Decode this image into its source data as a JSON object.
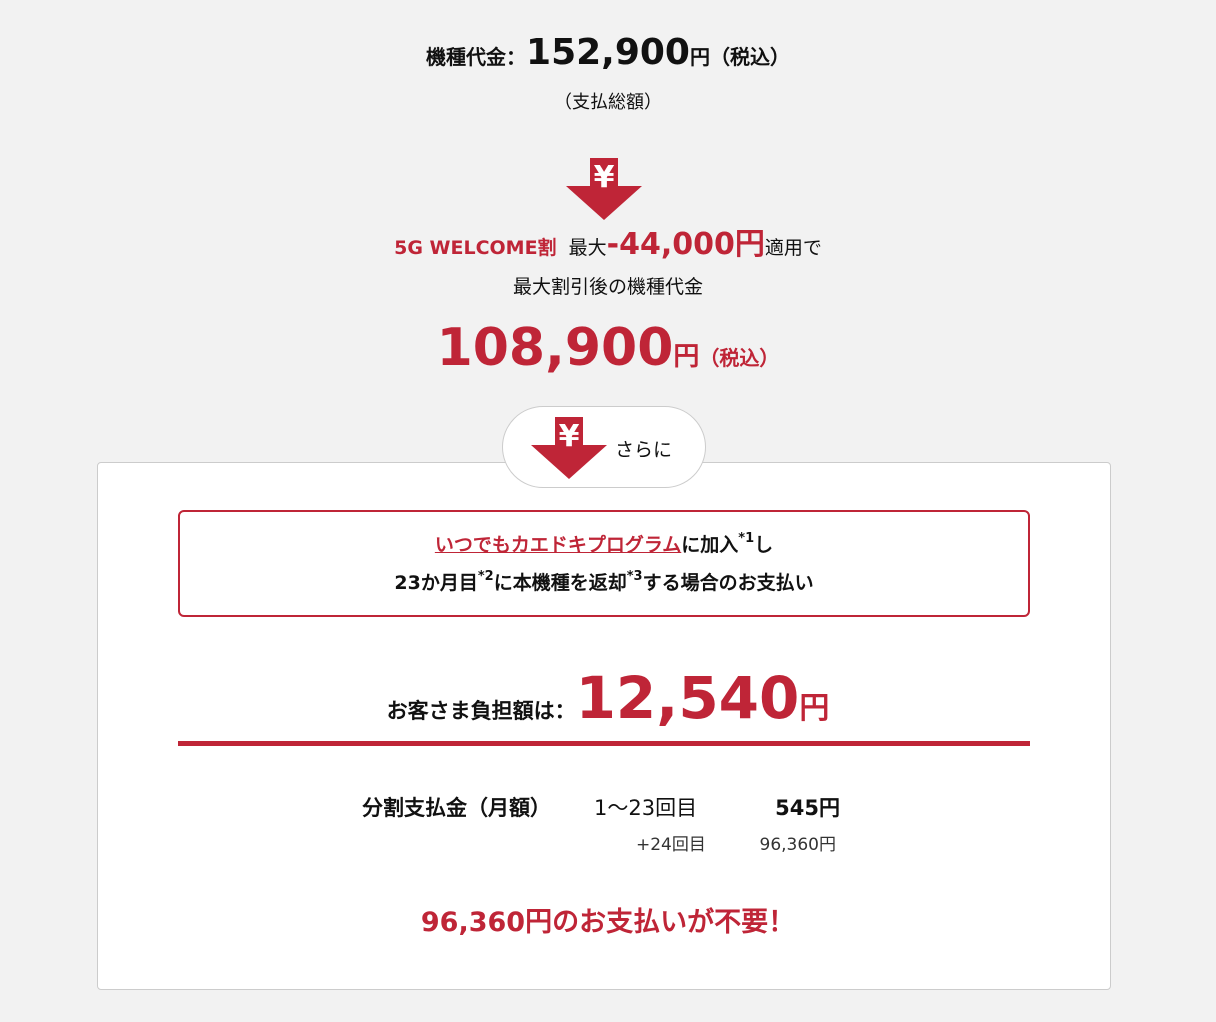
{
  "price": {
    "label": "機種代金：",
    "amount": "152,900",
    "yen": "円",
    "tax": "（税込）",
    "note": "（支払総額）"
  },
  "arrow_icon": "yen-down-arrow-icon",
  "yen_symbol": "¥",
  "discount": {
    "name": "5G WELCOME割",
    "prefix": "最大",
    "amount": "-44,000円",
    "suffix": "適用で",
    "line2": "最大割引後の機種代金"
  },
  "discounted": {
    "amount": "108,900",
    "yen": "円",
    "tax": "（税込）"
  },
  "further": {
    "label": "さらに"
  },
  "program": {
    "link": "いつでもカエドキプログラム",
    "t1": "に加入",
    "s1": "*1",
    "t2": "し",
    "t3": "23か月目",
    "s2": "*2",
    "t4": "に本機種を返却",
    "s3": "*3",
    "t5": "する場合のお支払い"
  },
  "burden": {
    "label": "お客さま負担額は：",
    "amount": "12,540",
    "yen": "円"
  },
  "installment": {
    "label": "分割支払金（月額）",
    "range": "1〜23回目",
    "amount": "545",
    "yen": "円",
    "range2": "+24回目",
    "amount2": "96,360",
    "yen2": "円"
  },
  "conclusion": "96,360円のお支払いが不要！",
  "colors": {
    "accent": "#bf2537",
    "background": "#f2f2f2"
  }
}
